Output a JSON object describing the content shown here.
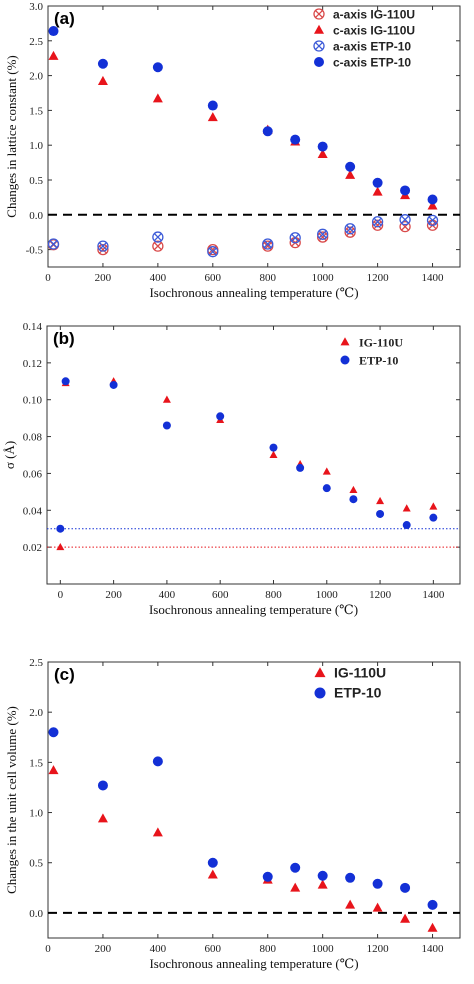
{
  "colors": {
    "red": "#e8141b",
    "blue": "#1330d6",
    "cross_red": "#d94a4a",
    "cross_blue": "#3d5bd8"
  },
  "chart_data": [
    {
      "type": "scatter",
      "panel_label": "(a)",
      "xlabel": "Isochronous annealing temperature (℃)",
      "ylabel": "Changes in lattice constant (%)",
      "xlim": [
        0,
        1500
      ],
      "ylim": [
        -0.75,
        3.0
      ],
      "xticks": [
        "0",
        "200",
        "400",
        "600",
        "800",
        "1000",
        "1200",
        "1400"
      ],
      "yticks": [
        "-0.5",
        "0.0",
        "0.5",
        "1.0",
        "1.5",
        "2.0",
        "2.5",
        "3.0"
      ],
      "legend_position": "top-right",
      "reference_line": {
        "y": 0.0,
        "style": "dashed",
        "color": "#000000"
      },
      "series": [
        {
          "name": "a-axis IG-110U",
          "marker": "crossed-circle",
          "color": "#d94a4a",
          "x": [
            20,
            200,
            400,
            600,
            800,
            900,
            1000,
            1100,
            1200,
            1300,
            1400
          ],
          "y": [
            -0.43,
            -0.5,
            -0.45,
            -0.5,
            -0.45,
            -0.4,
            -0.32,
            -0.25,
            -0.15,
            -0.17,
            -0.15
          ]
        },
        {
          "name": "c-axis IG-110U",
          "marker": "triangle",
          "color": "#e8141b",
          "x": [
            20,
            200,
            400,
            600,
            800,
            900,
            1000,
            1100,
            1200,
            1300,
            1400
          ],
          "y": [
            2.28,
            1.92,
            1.67,
            1.4,
            1.22,
            1.05,
            0.87,
            0.57,
            0.33,
            0.28,
            0.13
          ]
        },
        {
          "name": "a-axis ETP-10",
          "marker": "crossed-circle",
          "color": "#3d5bd8",
          "x": [
            20,
            200,
            400,
            600,
            800,
            900,
            1000,
            1100,
            1200,
            1300,
            1400
          ],
          "y": [
            -0.42,
            -0.45,
            -0.32,
            -0.53,
            -0.42,
            -0.33,
            -0.28,
            -0.2,
            -0.1,
            -0.07,
            -0.08
          ]
        },
        {
          "name": "c-axis ETP-10",
          "marker": "circle",
          "color": "#1330d6",
          "x": [
            20,
            200,
            400,
            600,
            800,
            900,
            1000,
            1100,
            1200,
            1300,
            1400
          ],
          "y": [
            2.64,
            2.17,
            2.12,
            1.57,
            1.2,
            1.08,
            0.98,
            0.69,
            0.46,
            0.35,
            0.22
          ]
        }
      ]
    },
    {
      "type": "scatter",
      "panel_label": "(b)",
      "xlabel": "Isochronous annealing temperature (℃)",
      "ylabel": "σ (Å)",
      "xlim": [
        -50,
        1500
      ],
      "ylim": [
        0.0,
        0.14
      ],
      "xticks": [
        "0",
        "200",
        "400",
        "600",
        "800",
        "1000",
        "1200",
        "1400"
      ],
      "yticks": [
        "0.02",
        "0.04",
        "0.06",
        "0.08",
        "0.10",
        "0.12",
        "0.14"
      ],
      "legend_position": "top-right",
      "reference_lines": [
        {
          "y": 0.03,
          "style": "dotted",
          "color": "#1330d6"
        },
        {
          "y": 0.02,
          "style": "dotted",
          "color": "#e8141b"
        }
      ],
      "series": [
        {
          "name": "IG-110U",
          "marker": "triangle",
          "color": "#e8141b",
          "x": [
            0,
            20,
            200,
            400,
            600,
            800,
            900,
            1000,
            1100,
            1200,
            1300,
            1400
          ],
          "y": [
            0.02,
            0.109,
            0.11,
            0.1,
            0.089,
            0.07,
            0.065,
            0.061,
            0.051,
            0.045,
            0.041,
            0.042
          ]
        },
        {
          "name": "ETP-10",
          "marker": "circle",
          "color": "#1330d6",
          "x": [
            0,
            20,
            200,
            400,
            600,
            800,
            900,
            1000,
            1100,
            1200,
            1300,
            1400
          ],
          "y": [
            0.03,
            0.11,
            0.108,
            0.086,
            0.091,
            0.074,
            0.063,
            0.052,
            0.046,
            0.038,
            0.032,
            0.036
          ]
        }
      ]
    },
    {
      "type": "scatter",
      "panel_label": "(c)",
      "xlabel": "Isochronous annealing temperature (℃)",
      "ylabel": "Changes in the unit cell volume (%)",
      "xlim": [
        0,
        1500
      ],
      "ylim": [
        -0.25,
        2.5
      ],
      "xticks": [
        "0",
        "200",
        "400",
        "600",
        "800",
        "1000",
        "1200",
        "1400"
      ],
      "yticks": [
        "0.0",
        "0.5",
        "1.0",
        "1.5",
        "2.0",
        "2.5"
      ],
      "legend_position": "top-right",
      "reference_line": {
        "y": 0.0,
        "style": "dashed",
        "color": "#000000"
      },
      "series": [
        {
          "name": "IG-110U",
          "marker": "triangle",
          "color": "#e8141b",
          "x": [
            20,
            200,
            400,
            600,
            800,
            900,
            1000,
            1100,
            1200,
            1300,
            1400
          ],
          "y": [
            1.42,
            0.94,
            0.8,
            0.38,
            0.33,
            0.25,
            0.28,
            0.08,
            0.05,
            -0.06,
            -0.15
          ]
        },
        {
          "name": "ETP-10",
          "marker": "circle",
          "color": "#1330d6",
          "x": [
            20,
            200,
            400,
            600,
            800,
            900,
            1000,
            1100,
            1200,
            1300,
            1400
          ],
          "y": [
            1.8,
            1.27,
            1.51,
            0.5,
            0.36,
            0.45,
            0.37,
            0.35,
            0.29,
            0.25,
            0.08
          ]
        }
      ]
    }
  ]
}
